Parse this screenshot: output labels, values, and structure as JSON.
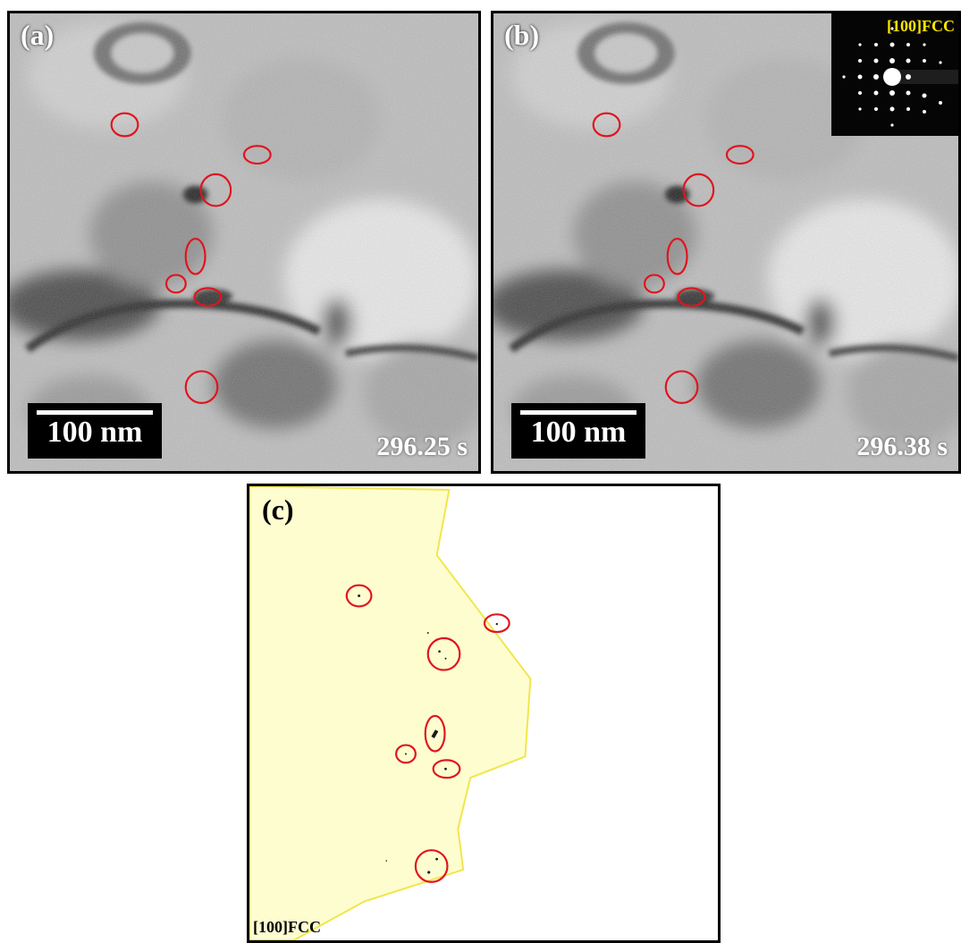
{
  "panel_a": {
    "label": "(a)",
    "scale": "100 nm",
    "time": "296.25 s"
  },
  "panel_b": {
    "label": "(b)",
    "scale": "100 nm",
    "time": "296.38 s",
    "inset_label": "[100]FCC"
  },
  "panel_c": {
    "label": "(c)",
    "orientation": "[100]FCC"
  },
  "colors": {
    "highlight_circle": "#e0141e",
    "grain_fill": "#fdfdd0",
    "grain_border": "#f2e64a",
    "inset_label": "#ffe600"
  }
}
